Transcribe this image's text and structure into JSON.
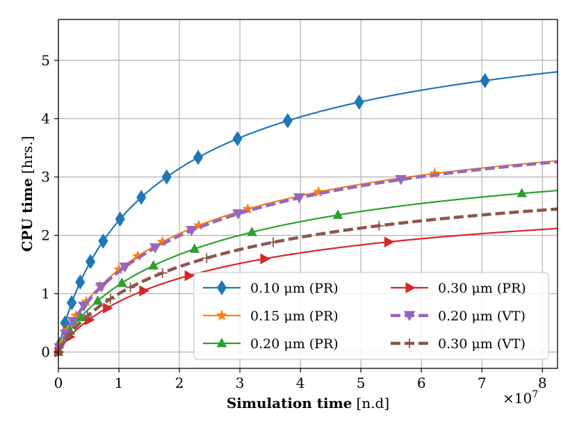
{
  "chart_data": {
    "type": "line",
    "title": "",
    "xlabel": {
      "bold": "Simulation time",
      "normal": "[n.d]"
    },
    "ylabel": {
      "bold": "CPU time",
      "normal": "[hrs.]"
    },
    "x_multiplier": "×10",
    "x_multiplier_exp": "7",
    "xlim": [
      0,
      8.25
    ],
    "ylim": [
      -0.28,
      5.7
    ],
    "x_ticks": [
      0,
      1,
      2,
      3,
      4,
      5,
      6,
      7,
      8
    ],
    "y_ticks": [
      0,
      1,
      2,
      3,
      4,
      5
    ],
    "grid": true,
    "legend_position": "lower-right",
    "series": [
      {
        "name": "0.10 μm (PR)",
        "color": "#1f77b4",
        "marker": "diamond",
        "dashed": false,
        "curve": {
          "a": 6.2,
          "b": 1.75,
          "p": 0.85
        },
        "markers_x": [
          0.02,
          0.11,
          0.22,
          0.36,
          0.53,
          0.74,
          1.02,
          1.37,
          1.79,
          2.31,
          2.96,
          3.79,
          4.97,
          7.05
        ]
      },
      {
        "name": "0.15 μm (PR)",
        "color": "#ff7f0e",
        "marker": "star",
        "dashed": false,
        "curve": {
          "a": 4.45,
          "b": 2.15,
          "p": 0.85
        },
        "markers_x": [
          0.04,
          0.15,
          0.29,
          0.46,
          0.69,
          1.0,
          1.31,
          1.72,
          2.32,
          3.13,
          4.3,
          6.22
        ]
      },
      {
        "name": "0.20 μm (PR)",
        "color": "#2ca02c",
        "marker": "triangle-up",
        "dashed": false,
        "curve": {
          "a": 3.85,
          "b": 2.35,
          "p": 0.85
        },
        "markers_x": [
          0.0,
          0.19,
          0.37,
          0.65,
          1.05,
          1.57,
          2.25,
          3.2,
          4.62,
          7.66
        ]
      },
      {
        "name": "0.30 μm (PR)",
        "color": "#d62728",
        "marker": "triangle-right",
        "dashed": false,
        "curve": {
          "a": 2.98,
          "b": 2.45,
          "p": 0.85
        },
        "markers_x": [
          0.0,
          0.18,
          0.5,
          0.8,
          1.4,
          2.15,
          3.4,
          5.45
        ]
      },
      {
        "name": "0.20 μm (VT)",
        "color": "#9467bd",
        "marker": "triangle-down",
        "dashed": true,
        "curve": {
          "a": 4.48,
          "b": 2.25,
          "p": 0.85
        },
        "markers_x": [
          0.02,
          0.12,
          0.24,
          0.42,
          0.71,
          1.1,
          1.6,
          2.2,
          2.97,
          3.98,
          5.66
        ]
      },
      {
        "name": "0.30 μm (VT)",
        "color": "#8c564b",
        "marker": "plus",
        "dashed": true,
        "curve": {
          "a": 3.45,
          "b": 2.45,
          "p": 0.85
        },
        "markers_x": [
          0.0,
          0.19,
          0.48,
          0.86,
          1.19,
          1.72,
          2.45,
          3.55,
          5.3
        ]
      }
    ]
  }
}
